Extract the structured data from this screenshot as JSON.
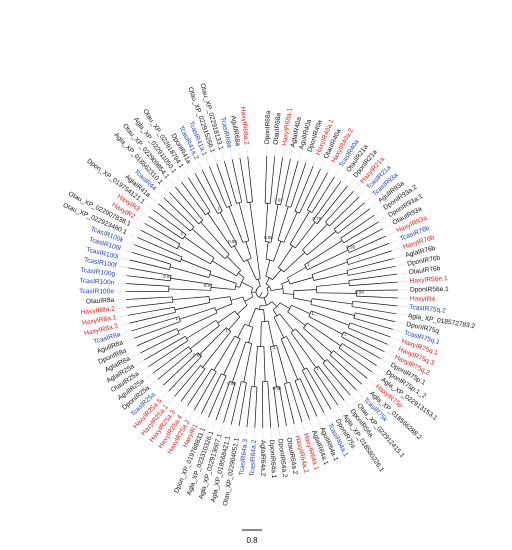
{
  "colors": {
    "red": "#e31a1c",
    "blue": "#1f3fbf",
    "black": "#111111"
  },
  "scale_bar": {
    "label": "0.8"
  },
  "support_values": [
    "0.97",
    "0.79",
    "0.95",
    "0.98",
    "1",
    "1",
    "0.99",
    "0.96",
    "0.89",
    "1",
    "0.91",
    "1",
    "1",
    "0.98",
    "1",
    "1",
    "1",
    "1",
    "0.97",
    "0.99"
  ],
  "leaves": [
    {
      "label": "DponIR68a",
      "color": "black"
    },
    {
      "label": "OtauIR68a",
      "color": "black"
    },
    {
      "label": "HaxyIR68a.1",
      "color": "red"
    },
    {
      "label": "AglaIR40a",
      "color": "black"
    },
    {
      "label": "AgulIR40a",
      "color": "black"
    },
    {
      "label": "DponIR40a",
      "color": "black"
    },
    {
      "label": "HaxyIR40a.1",
      "color": "red"
    },
    {
      "label": "OtauIR40a",
      "color": "black"
    },
    {
      "label": "HaxyIR40a.2",
      "color": "red"
    },
    {
      "label": "TcasIR40a",
      "color": "blue"
    },
    {
      "label": "OtauIR21a",
      "color": "black"
    },
    {
      "label": "DponIR21a",
      "color": "black"
    },
    {
      "label": "HaxyIR21a",
      "color": "red"
    },
    {
      "label": "TcasIR21a",
      "color": "blue"
    },
    {
      "label": "TcasIR93a",
      "color": "blue"
    },
    {
      "label": "AgulIR93a",
      "color": "black"
    },
    {
      "label": "DponIR93a.2",
      "color": "black"
    },
    {
      "label": "DponIR93a.1",
      "color": "black"
    },
    {
      "label": "OtauIR93a",
      "color": "black"
    },
    {
      "label": "HaxyIR93a",
      "color": "red"
    },
    {
      "label": "TcasIR76b",
      "color": "blue"
    },
    {
      "label": "HaxyIR76b",
      "color": "red"
    },
    {
      "label": "AglaIR76b",
      "color": "black"
    },
    {
      "label": "DponIR76b",
      "color": "black"
    },
    {
      "label": "OtauIR76b",
      "color": "black"
    },
    {
      "label": "HaxyIR56e.1",
      "color": "red"
    },
    {
      "label": "DponIR56e.1",
      "color": "black"
    },
    {
      "label": "HaxyIR4",
      "color": "red"
    },
    {
      "label": "TcasIR75q.2",
      "color": "blue"
    },
    {
      "label": "Agla_XP_018572783.2",
      "color": "black"
    },
    {
      "label": "DponIR75q",
      "color": "black"
    },
    {
      "label": "TcasIR75q.1",
      "color": "blue"
    },
    {
      "label": "HaxyIR75q.1",
      "color": "red"
    },
    {
      "label": "HaxyIR75q.3",
      "color": "red"
    },
    {
      "label": "HaxyIR75q.2",
      "color": "red"
    },
    {
      "label": "DponIR75p.1",
      "color": "black"
    },
    {
      "label": "DponIR75p.1_2",
      "color": "black"
    },
    {
      "label": "Agla_XP_022913153.1",
      "color": "black"
    },
    {
      "label": "HaxyIR75p",
      "color": "red"
    },
    {
      "label": "Agla_XP_018566288.2",
      "color": "black"
    },
    {
      "label": "TcasIR75k",
      "color": "blue"
    },
    {
      "label": "Otau_XP_022912415.1",
      "color": "black"
    },
    {
      "label": "DponIR56a",
      "color": "black"
    },
    {
      "label": "Agla_XP_018580226.1",
      "color": "black"
    },
    {
      "label": "DponIR75s",
      "color": "black"
    },
    {
      "label": "TcasIR64a.1",
      "color": "blue"
    },
    {
      "label": "AgulIR64a.1",
      "color": "black"
    },
    {
      "label": "AglaIR64a.1",
      "color": "black"
    },
    {
      "label": "HaxyIR64a.1",
      "color": "red"
    },
    {
      "label": "HaxyIR64a.2",
      "color": "red"
    },
    {
      "label": "OtauIR64a.2",
      "color": "black"
    },
    {
      "label": "DponIR64a.2",
      "color": "black"
    },
    {
      "label": "DponIR64a.1",
      "color": "black"
    },
    {
      "label": "AglaIR64a.2",
      "color": "black"
    },
    {
      "label": "TcasIR64a.2",
      "color": "blue"
    },
    {
      "label": "TcasIR64a.3",
      "color": "blue"
    },
    {
      "label": "Otau_XP_022904051.1",
      "color": "black"
    },
    {
      "label": "Agla_XP_018568421.1",
      "color": "black"
    },
    {
      "label": "Agla_XP_022913607.1",
      "color": "black"
    },
    {
      "label": "Agla_XP_023310326.1",
      "color": "black"
    },
    {
      "label": "Dpon_XP_019768833.1",
      "color": "black"
    },
    {
      "label": "HaxyIR1",
      "color": "red"
    },
    {
      "label": "HaxyIR25a.2",
      "color": "red"
    },
    {
      "label": "HaxyIR25a.4",
      "color": "red"
    },
    {
      "label": "HaxyIR25a.3",
      "color": "red"
    },
    {
      "label": "HaxyIR25a.1",
      "color": "red"
    },
    {
      "label": "HaxyIR25a.5",
      "color": "red"
    },
    {
      "label": "TcasIR25a",
      "color": "blue"
    },
    {
      "label": "DponIR25a",
      "color": "black"
    },
    {
      "label": "AgulIR25a",
      "color": "black"
    },
    {
      "label": "OtauIR25a",
      "color": "black"
    },
    {
      "label": "AglaIR25a",
      "color": "black"
    },
    {
      "label": "AglaIR8a",
      "color": "black"
    },
    {
      "label": "DponIR8a",
      "color": "black"
    },
    {
      "label": "AgulIR8a",
      "color": "black"
    },
    {
      "label": "TcasIR8a",
      "color": "blue"
    },
    {
      "label": "HaxyIR8a.3",
      "color": "red"
    },
    {
      "label": "HaxyIR8a.1",
      "color": "red"
    },
    {
      "label": "HaxyIR8a.2",
      "color": "red"
    },
    {
      "label": "OtauIR8a",
      "color": "black"
    },
    {
      "label": "TcasIR100e",
      "color": "blue"
    },
    {
      "label": "TcasIR100n",
      "color": "blue"
    },
    {
      "label": "TcasIR100g",
      "color": "blue"
    },
    {
      "label": "TcasIR100f",
      "color": "blue"
    },
    {
      "label": "TcasIR100i",
      "color": "blue"
    },
    {
      "label": "TcasIR100l",
      "color": "blue"
    },
    {
      "label": "TcasIR100k",
      "color": "blue"
    },
    {
      "label": "Otau_XP_022923480.1",
      "color": "black"
    },
    {
      "label": "Otau_XP_022907838.1",
      "color": "black"
    },
    {
      "label": "HaxyIR2",
      "color": "red"
    },
    {
      "label": "HaxyIR3",
      "color": "red"
    },
    {
      "label": "Dpon_XP_019754121.1",
      "color": "black"
    },
    {
      "label": "AglaIR41a",
      "color": "black"
    },
    {
      "label": "TcasIR44",
      "color": "blue"
    },
    {
      "label": "Agla_XP_018562310.1",
      "color": "black"
    },
    {
      "label": "Otau_XP_022909854.1",
      "color": "black"
    },
    {
      "label": "Agla_XP_022911050.1",
      "color": "black"
    },
    {
      "label": "Otau_XP_022918794.1",
      "color": "black"
    },
    {
      "label": "DponIR41a",
      "color": "black"
    },
    {
      "label": "TcasIR41a.2",
      "color": "blue"
    },
    {
      "label": "TcasIR41a.1",
      "color": "blue"
    },
    {
      "label": "Otau_XP_022915266.1",
      "color": "black"
    },
    {
      "label": "Otau_XP_022918133.1",
      "color": "black"
    },
    {
      "label": "TcasIR68a",
      "color": "blue"
    },
    {
      "label": "AgulIR68a",
      "color": "black"
    },
    {
      "label": "HaxyIR68a.2",
      "color": "red"
    }
  ]
}
